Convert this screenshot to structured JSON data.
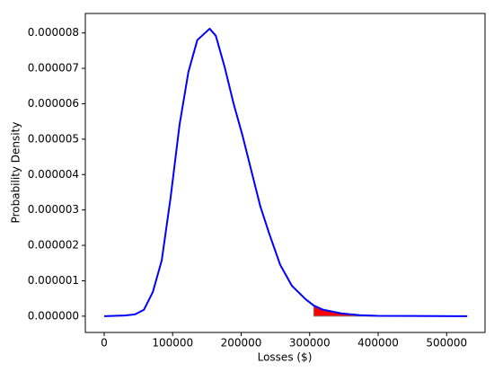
{
  "chart_data": {
    "type": "line",
    "xlabel": "Losses ($)",
    "ylabel": "Probability Density",
    "x": [
      0,
      30000,
      45000,
      58000,
      71000,
      84000,
      97000,
      110000,
      123000,
      136000,
      154000,
      163000,
      176000,
      189000,
      202000,
      215000,
      228000,
      241000,
      257000,
      274000,
      294000,
      306000,
      320000,
      346000,
      373000,
      399000,
      450000,
      530000
    ],
    "values": [
      0,
      2e-08,
      5e-08,
      1.8e-07,
      6.8e-07,
      1.57e-06,
      3.35e-06,
      5.4e-06,
      6.9e-06,
      7.8e-06,
      8.12e-06,
      7.92e-06,
      7.03e-06,
      6e-06,
      5.1e-06,
      4.1e-06,
      3.1e-06,
      2.33e-06,
      1.45e-06,
      8.6e-07,
      4.8e-07,
      3e-07,
      1.8e-07,
      8e-08,
      3e-08,
      1e-08,
      5e-09,
      0
    ],
    "color": "#0000ff",
    "shade_from": 306000,
    "shade_color": "#ff0000",
    "xlim": [
      -27500,
      556000
    ],
    "ylim": [
      -4.6e-07,
      8.55e-06
    ],
    "xticks": [
      0,
      100000,
      200000,
      300000,
      400000,
      500000
    ],
    "yticks": [
      {
        "value": 0,
        "label": "0.000000"
      },
      {
        "value": 1e-06,
        "label": "0.000001"
      },
      {
        "value": 2e-06,
        "label": "0.000002"
      },
      {
        "value": 3e-06,
        "label": "0.000003"
      },
      {
        "value": 4e-06,
        "label": "0.000004"
      },
      {
        "value": 5e-06,
        "label": "0.000005"
      },
      {
        "value": 6e-06,
        "label": "0.000006"
      },
      {
        "value": 7e-06,
        "label": "0.000007"
      },
      {
        "value": 8e-06,
        "label": "0.000008"
      }
    ],
    "grid": false
  }
}
